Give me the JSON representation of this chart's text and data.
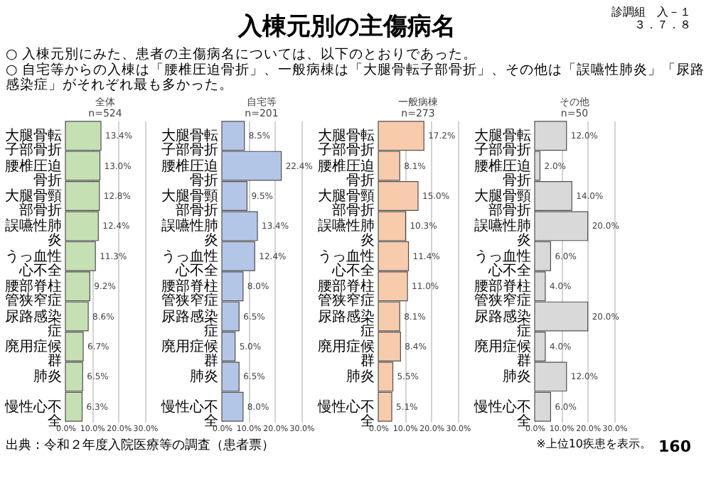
{
  "chart_data": [
    {
      "type": "other",
      "title": "入棟元別の主傷病名",
      "annotations": [
        "○ 入棟元別にみた、患者の主傷病名については、以下のとおりであった。",
        "○ 自宅等からの入棟は「腰椎圧迫骨折」、一般病棟は「大腿骨転子部骨折」、その他は「誤嚥性肺炎」「尿路感染症」がそれぞれ最も多かった。",
        "診調組　入－１",
        "３．７．８"
      ]
    },
    {
      "type": "bar",
      "orientation": "horizontal",
      "title": "全体",
      "subtitle": "n=524",
      "categories": [
        "大腿骨転子部骨折",
        "腰椎圧迫骨折",
        "大腿骨頸部骨折",
        "誤嚥性肺炎",
        "うっ血性心不全",
        "腰部脊柱管狭窄症",
        "尿路感染症",
        "廃用症候群",
        "肺炎",
        "慢性心不全"
      ],
      "values": [
        13.4,
        13.0,
        12.8,
        12.4,
        11.3,
        9.2,
        8.6,
        6.7,
        6.5,
        6.3
      ],
      "value_labels": [
        "13.4%",
        "13.0%",
        "12.8%",
        "12.4%",
        "11.3%",
        "9.2%",
        "8.6%",
        "6.7%",
        "6.5%",
        "6.3%"
      ],
      "color": "#c5e0b3",
      "xlim": [
        0,
        30
      ],
      "xticks": [
        {
          "value": 0,
          "label": "0.0%"
        },
        {
          "value": 10,
          "label": "10.0%"
        },
        {
          "value": 20,
          "label": "20.0%"
        },
        {
          "value": 30,
          "label": "30.0%"
        }
      ],
      "grid": "x"
    },
    {
      "type": "bar",
      "orientation": "horizontal",
      "title": "自宅等",
      "subtitle": "n=201",
      "categories": [
        "大腿骨転子部骨折",
        "腰椎圧迫骨折",
        "大腿骨頸部骨折",
        "誤嚥性肺炎",
        "うっ血性心不全",
        "腰部脊柱管狭窄症",
        "尿路感染症",
        "廃用症候群",
        "肺炎",
        "慢性心不全"
      ],
      "values": [
        8.5,
        22.4,
        9.5,
        13.4,
        12.4,
        8.0,
        6.5,
        5.0,
        6.5,
        8.0
      ],
      "value_labels": [
        "8.5%",
        "22.4%",
        "9.5%",
        "13.4%",
        "12.4%",
        "8.0%",
        "6.5%",
        "5.0%",
        "6.5%",
        "8.0%"
      ],
      "color": "#b4c6e7",
      "xlim": [
        0,
        30
      ],
      "xticks": [
        {
          "value": 0,
          "label": "0.0%"
        },
        {
          "value": 10,
          "label": "10.0%"
        },
        {
          "value": 20,
          "label": "20.0%"
        },
        {
          "value": 30,
          "label": "30.0%"
        }
      ],
      "grid": "x"
    },
    {
      "type": "bar",
      "orientation": "horizontal",
      "title": "一般病棟",
      "subtitle": "n=273",
      "categories": [
        "大腿骨転子部骨折",
        "腰椎圧迫骨折",
        "大腿骨頸部骨折",
        "誤嚥性肺炎",
        "うっ血性心不全",
        "腰部脊柱管狭窄症",
        "尿路感染症",
        "廃用症候群",
        "肺炎",
        "慢性心不全"
      ],
      "values": [
        17.2,
        8.1,
        15.0,
        10.3,
        11.4,
        11.0,
        8.1,
        8.4,
        5.5,
        5.1
      ],
      "value_labels": [
        "17.2%",
        "8.1%",
        "15.0%",
        "10.3%",
        "11.4%",
        "11.0%",
        "8.1%",
        "8.4%",
        "5.5%",
        "5.1%"
      ],
      "color": "#f8cbad",
      "xlim": [
        0,
        30
      ],
      "xticks": [
        {
          "value": 0,
          "label": "0.0%"
        },
        {
          "value": 10,
          "label": "10.0%"
        },
        {
          "value": 20,
          "label": "20.0%"
        },
        {
          "value": 30,
          "label": "30.0%"
        }
      ],
      "grid": "x"
    },
    {
      "type": "bar",
      "orientation": "horizontal",
      "title": "その他",
      "subtitle": "n=50",
      "categories": [
        "大腿骨転子部骨折",
        "腰椎圧迫骨折",
        "大腿骨頸部骨折",
        "誤嚥性肺炎",
        "うっ血性心不全",
        "腰部脊柱管狭窄症",
        "尿路感染症",
        "廃用症候群",
        "肺炎",
        "慢性心不全"
      ],
      "values": [
        12.0,
        2.0,
        14.0,
        20.0,
        6.0,
        4.0,
        20.0,
        4.0,
        12.0,
        6.0
      ],
      "value_labels": [
        "12.0%",
        "2.0%",
        "14.0%",
        "20.0%",
        "6.0%",
        "4.0%",
        "20.0%",
        "4.0%",
        "12.0%",
        "6.0%"
      ],
      "color": "#d9d9d9",
      "xlim": [
        0,
        30
      ],
      "xticks": [
        {
          "value": 0,
          "label": "0.0%"
        },
        {
          "value": 10,
          "label": "10.0%"
        },
        {
          "value": 20,
          "label": "20.0%"
        },
        {
          "value": 30,
          "label": "30.0%"
        }
      ],
      "grid": "x"
    },
    {
      "type": "other",
      "annotations": [
        "出典：令和２年度入院医療等の調査（患者票）",
        "※上位10疾患を表示。",
        "160"
      ]
    }
  ]
}
